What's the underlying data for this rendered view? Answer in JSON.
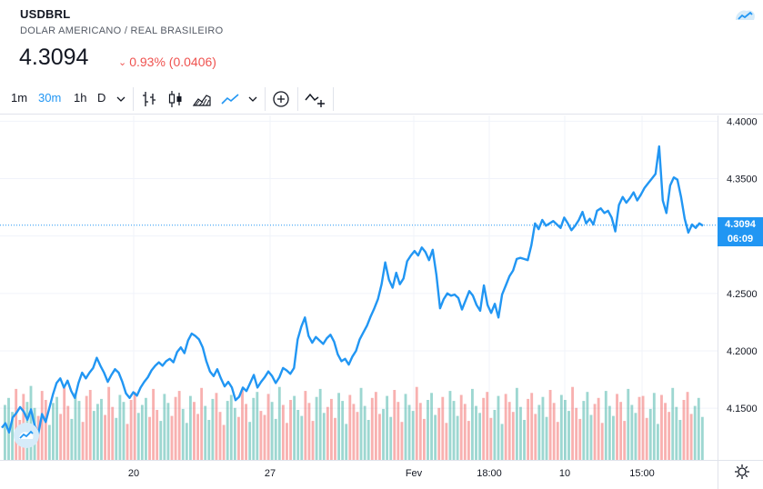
{
  "header": {
    "symbol": "USDBRL",
    "description": "DOLAR AMERICANO / REAL BRASILEIRO",
    "price": "4.3094",
    "change": "0.93% (0.0406)",
    "change_color": "#ef5350"
  },
  "toolbar": {
    "intervals": [
      "1m",
      "30m",
      "1h",
      "D"
    ],
    "active_interval": "30m",
    "icons": [
      "chevron-down-icon",
      "bars-icon",
      "candles-icon",
      "area-icon",
      "line-icon",
      "chevron-down-icon",
      "crosshair-icon",
      "compare-icon"
    ]
  },
  "price_labels": {
    "last": "4.3094",
    "countdown": "06:09"
  },
  "chart_data": {
    "type": "line",
    "symbol": "USDBRL",
    "y_ticks": [
      "4.4000",
      "4.3500",
      "4.3000",
      "4.2500",
      "4.2000",
      "4.1500"
    ],
    "ylim": [
      4.105,
      4.405
    ],
    "x_ticks": [
      "20",
      "27",
      "Fev",
      "18:00",
      "10",
      "15:00"
    ],
    "grid": true,
    "line_color": "#2196f3",
    "last_value": 4.3094,
    "series": [
      {
        "values": [
          4.133,
          4.137,
          4.129,
          4.142,
          4.146,
          4.151,
          4.147,
          4.14,
          4.149,
          4.135,
          4.128,
          4.145,
          4.138,
          4.15,
          4.162,
          4.172,
          4.176,
          4.168,
          4.174,
          4.165,
          4.159,
          4.172,
          4.181,
          4.176,
          4.181,
          4.185,
          4.194,
          4.187,
          4.181,
          4.173,
          4.179,
          4.184,
          4.181,
          4.173,
          4.163,
          4.159,
          4.164,
          4.161,
          4.168,
          4.173,
          4.177,
          4.183,
          4.187,
          4.19,
          4.187,
          4.191,
          4.193,
          4.19,
          4.199,
          4.203,
          4.198,
          4.209,
          4.215,
          4.213,
          4.21,
          4.203,
          4.191,
          4.182,
          4.178,
          4.184,
          4.176,
          4.169,
          4.173,
          4.168,
          4.157,
          4.16,
          4.168,
          4.165,
          4.172,
          4.179,
          4.168,
          4.173,
          4.177,
          4.182,
          4.178,
          4.172,
          4.177,
          4.185,
          4.183,
          4.18,
          4.185,
          4.21,
          4.221,
          4.229,
          4.213,
          4.207,
          4.212,
          4.209,
          4.206,
          4.211,
          4.214,
          4.208,
          4.197,
          4.191,
          4.193,
          4.188,
          4.195,
          4.2,
          4.21,
          4.216,
          4.222,
          4.23,
          4.237,
          4.245,
          4.258,
          4.277,
          4.262,
          4.255,
          4.268,
          4.258,
          4.263,
          4.278,
          4.283,
          4.287,
          4.283,
          4.29,
          4.286,
          4.279,
          4.288,
          4.266,
          4.237,
          4.245,
          4.25,
          4.248,
          4.249,
          4.246,
          4.236,
          4.244,
          4.252,
          4.248,
          4.24,
          4.235,
          4.257,
          4.24,
          4.233,
          4.241,
          4.229,
          4.249,
          4.257,
          4.265,
          4.27,
          4.28,
          4.281,
          4.28,
          4.279,
          4.292,
          4.311,
          4.306,
          4.314,
          4.309,
          4.311,
          4.313,
          4.31,
          4.307,
          4.316,
          4.311,
          4.305,
          4.309,
          4.314,
          4.321,
          4.311,
          4.315,
          4.31,
          4.322,
          4.324,
          4.32,
          4.322,
          4.316,
          4.304,
          4.327,
          4.334,
          4.329,
          4.333,
          4.338,
          4.331,
          4.336,
          4.342,
          4.346,
          4.35,
          4.354,
          4.378,
          4.331,
          4.32,
          4.344,
          4.351,
          4.349,
          4.334,
          4.315,
          4.303,
          4.31,
          4.307,
          4.311,
          4.309
        ]
      }
    ],
    "volume": {
      "colors": [
        "#26a69a",
        "#ef5350"
      ],
      "values": [
        0.55,
        0.62,
        0.48,
        0.71,
        0.4,
        0.66,
        0.58,
        0.74,
        0.52,
        0.44,
        0.69,
        0.6,
        0.35,
        0.57,
        0.63,
        0.46,
        0.72,
        0.54,
        0.41,
        0.67,
        0.59,
        0.38,
        0.64,
        0.7,
        0.49,
        0.56,
        0.61,
        0.45,
        0.73,
        0.53,
        0.42,
        0.65,
        0.58,
        0.36,
        0.6,
        0.68,
        0.47,
        0.55,
        0.62,
        0.43,
        0.71,
        0.5,
        0.39,
        0.66,
        0.57,
        0.44,
        0.63,
        0.69,
        0.51,
        0.37,
        0.64,
        0.58,
        0.46,
        0.72,
        0.54,
        0.4,
        0.61,
        0.67,
        0.48,
        0.35,
        0.59,
        0.65,
        0.52,
        0.43,
        0.7,
        0.56,
        0.38,
        0.62,
        0.68,
        0.49,
        0.45,
        0.66,
        0.58,
        0.41,
        0.73,
        0.55,
        0.37,
        0.6,
        0.64,
        0.5,
        0.44,
        0.69,
        0.57,
        0.39,
        0.63,
        0.71,
        0.47,
        0.53,
        0.61,
        0.42,
        0.67,
        0.59,
        0.36,
        0.65,
        0.56,
        0.48,
        0.72,
        0.54,
        0.4,
        0.62,
        0.68,
        0.46,
        0.51,
        0.64,
        0.43,
        0.7,
        0.58,
        0.38,
        0.66,
        0.55,
        0.49,
        0.73,
        0.57,
        0.41,
        0.6,
        0.67,
        0.45,
        0.52,
        0.63,
        0.37,
        0.69,
        0.59,
        0.44,
        0.65,
        0.56,
        0.39,
        0.71,
        0.54,
        0.47,
        0.62,
        0.68,
        0.42,
        0.5,
        0.64,
        0.36,
        0.66,
        0.58,
        0.48,
        0.72,
        0.53,
        0.4,
        0.61,
        0.67,
        0.46,
        0.55,
        0.63,
        0.43,
        0.7,
        0.57,
        0.38,
        0.65,
        0.6,
        0.49,
        0.73,
        0.52,
        0.41,
        0.59,
        0.68,
        0.45,
        0.56,
        0.62,
        0.37,
        0.69,
        0.54,
        0.44,
        0.66,
        0.58,
        0.39,
        0.71,
        0.55,
        0.47,
        0.63,
        0.64,
        0.42,
        0.51,
        0.67,
        0.36,
        0.65,
        0.57,
        0.48,
        0.72,
        0.53,
        0.4,
        0.6,
        0.68,
        0.46,
        0.54,
        0.62,
        0.43
      ]
    }
  }
}
